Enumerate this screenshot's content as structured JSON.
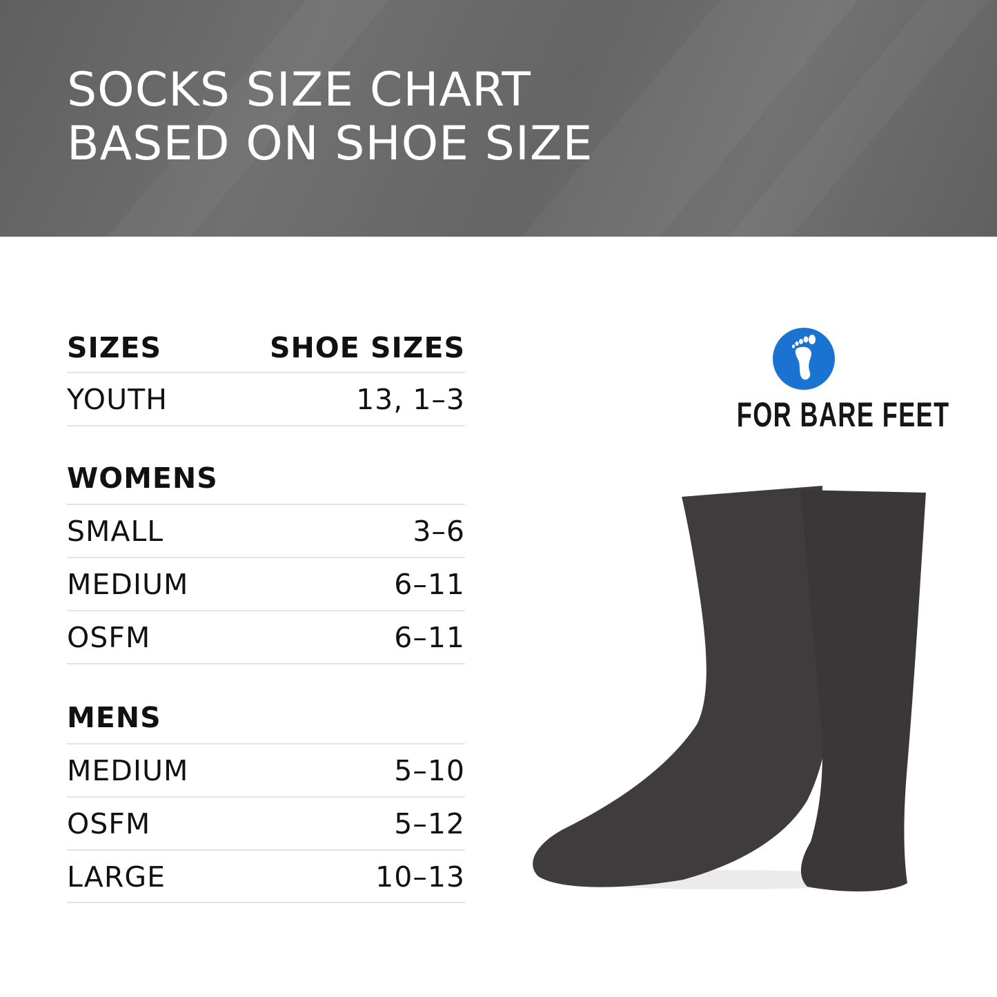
{
  "header": {
    "title_line1": "SOCKS SIZE CHART",
    "title_line2": "BASED ON SHOE SIZE"
  },
  "table": {
    "col_sizes": "SIZES",
    "col_shoe": "SHOE SIZES",
    "youth": {
      "label": "YOUTH",
      "value": "13, 1–3"
    },
    "womens": {
      "heading": "WOMENS",
      "rows": [
        {
          "label": "SMALL",
          "value": "3–6"
        },
        {
          "label": "MEDIUM",
          "value": "6–11"
        },
        {
          "label": "OSFM",
          "value": "6–11"
        }
      ]
    },
    "mens": {
      "heading": "MENS",
      "rows": [
        {
          "label": "MEDIUM",
          "value": "5–10"
        },
        {
          "label": "OSFM",
          "value": "5–12"
        },
        {
          "label": "LARGE",
          "value": "10–13"
        }
      ]
    }
  },
  "logo": {
    "text": "FOR BARE FEET",
    "icon": "foot-icon",
    "color": "#1a73d0"
  },
  "sock_color": "#403b3c"
}
